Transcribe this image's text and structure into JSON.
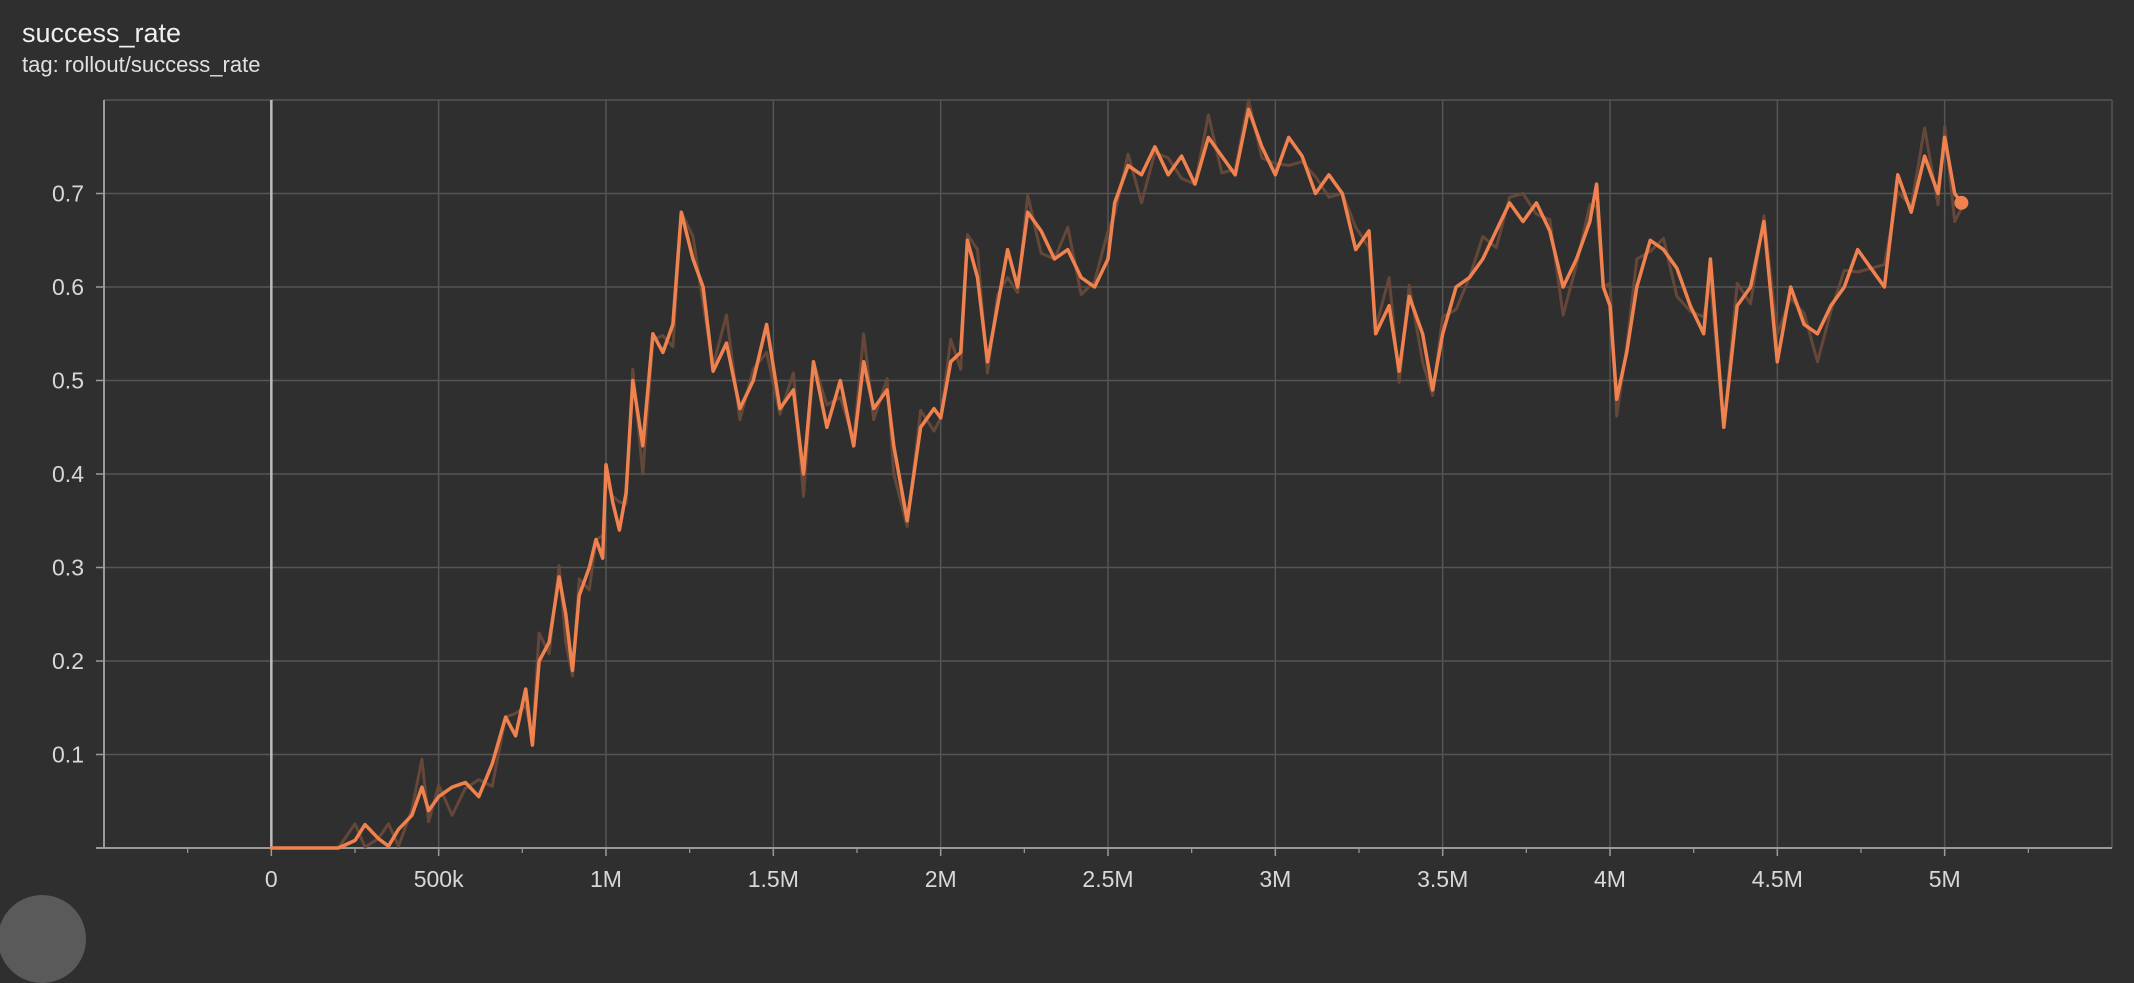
{
  "card": {
    "title": "success_rate",
    "subtitle": "tag: rollout/success_rate"
  },
  "colors": {
    "background": "#2f2f2f",
    "grid": "#555555",
    "axis": "#9a9a9a",
    "zero_line": "#bdbdbd",
    "smoothed": "#f0824f",
    "raw": "#6a4a3a"
  },
  "chart_data": {
    "type": "line",
    "title": "success_rate",
    "xlabel": "",
    "ylabel": "",
    "xlim": [
      -500000,
      5500000
    ],
    "ylim": [
      0,
      0.8
    ],
    "x_ticks": [
      0,
      500000,
      1000000,
      1500000,
      2000000,
      2500000,
      3000000,
      3500000,
      4000000,
      4500000,
      5000000
    ],
    "x_tick_labels": [
      "0",
      "500k",
      "1M",
      "1.5M",
      "2M",
      "2.5M",
      "3M",
      "3.5M",
      "4M",
      "4.5M",
      "5M"
    ],
    "y_ticks": [
      0.1,
      0.2,
      0.3,
      0.4,
      0.5,
      0.6,
      0.7
    ],
    "y_tick_labels": [
      "0.1",
      "0.2",
      "0.3",
      "0.4",
      "0.5",
      "0.6",
      "0.7"
    ],
    "grid": true,
    "series": [
      {
        "smoothing": "smoothed",
        "points": [
          [
            0,
            0
          ],
          [
            200000,
            0
          ],
          [
            250000,
            0.008
          ],
          [
            280000,
            0.025
          ],
          [
            320000,
            0.01
          ],
          [
            350000,
            0.002
          ],
          [
            380000,
            0.02
          ],
          [
            420000,
            0.035
          ],
          [
            450000,
            0.065
          ],
          [
            470000,
            0.04
          ],
          [
            500000,
            0.055
          ],
          [
            540000,
            0.065
          ],
          [
            580000,
            0.07
          ],
          [
            620000,
            0.055
          ],
          [
            660000,
            0.09
          ],
          [
            700000,
            0.14
          ],
          [
            730000,
            0.12
          ],
          [
            760000,
            0.17
          ],
          [
            780000,
            0.11
          ],
          [
            800000,
            0.2
          ],
          [
            830000,
            0.22
          ],
          [
            860000,
            0.29
          ],
          [
            880000,
            0.25
          ],
          [
            900000,
            0.19
          ],
          [
            920000,
            0.27
          ],
          [
            950000,
            0.3
          ],
          [
            970000,
            0.33
          ],
          [
            990000,
            0.31
          ],
          [
            1000000,
            0.41
          ],
          [
            1020000,
            0.37
          ],
          [
            1040000,
            0.34
          ],
          [
            1060000,
            0.38
          ],
          [
            1080000,
            0.5
          ],
          [
            1110000,
            0.43
          ],
          [
            1140000,
            0.55
          ],
          [
            1170000,
            0.53
          ],
          [
            1200000,
            0.56
          ],
          [
            1225000,
            0.68
          ],
          [
            1260000,
            0.63
          ],
          [
            1290000,
            0.6
          ],
          [
            1320000,
            0.51
          ],
          [
            1360000,
            0.54
          ],
          [
            1400000,
            0.47
          ],
          [
            1440000,
            0.5
          ],
          [
            1480000,
            0.56
          ],
          [
            1520000,
            0.47
          ],
          [
            1560000,
            0.49
          ],
          [
            1590000,
            0.4
          ],
          [
            1620000,
            0.52
          ],
          [
            1660000,
            0.45
          ],
          [
            1700000,
            0.5
          ],
          [
            1740000,
            0.43
          ],
          [
            1770000,
            0.52
          ],
          [
            1800000,
            0.47
          ],
          [
            1840000,
            0.49
          ],
          [
            1860000,
            0.43
          ],
          [
            1900000,
            0.35
          ],
          [
            1940000,
            0.45
          ],
          [
            1980000,
            0.47
          ],
          [
            2000000,
            0.46
          ],
          [
            2030000,
            0.52
          ],
          [
            2060000,
            0.53
          ],
          [
            2080000,
            0.65
          ],
          [
            2110000,
            0.61
          ],
          [
            2140000,
            0.52
          ],
          [
            2170000,
            0.58
          ],
          [
            2200000,
            0.64
          ],
          [
            2230000,
            0.6
          ],
          [
            2260000,
            0.68
          ],
          [
            2300000,
            0.66
          ],
          [
            2340000,
            0.63
          ],
          [
            2380000,
            0.64
          ],
          [
            2420000,
            0.61
          ],
          [
            2460000,
            0.6
          ],
          [
            2500000,
            0.63
          ],
          [
            2520000,
            0.69
          ],
          [
            2560000,
            0.73
          ],
          [
            2600000,
            0.72
          ],
          [
            2640000,
            0.75
          ],
          [
            2680000,
            0.72
          ],
          [
            2720000,
            0.74
          ],
          [
            2760000,
            0.71
          ],
          [
            2800000,
            0.76
          ],
          [
            2840000,
            0.74
          ],
          [
            2880000,
            0.72
          ],
          [
            2920000,
            0.79
          ],
          [
            2960000,
            0.75
          ],
          [
            3000000,
            0.72
          ],
          [
            3040000,
            0.76
          ],
          [
            3080000,
            0.74
          ],
          [
            3120000,
            0.7
          ],
          [
            3160000,
            0.72
          ],
          [
            3200000,
            0.7
          ],
          [
            3240000,
            0.64
          ],
          [
            3280000,
            0.66
          ],
          [
            3300000,
            0.55
          ],
          [
            3340000,
            0.58
          ],
          [
            3370000,
            0.51
          ],
          [
            3400000,
            0.59
          ],
          [
            3440000,
            0.55
          ],
          [
            3470000,
            0.49
          ],
          [
            3500000,
            0.55
          ],
          [
            3540000,
            0.6
          ],
          [
            3580000,
            0.61
          ],
          [
            3620000,
            0.63
          ],
          [
            3660000,
            0.66
          ],
          [
            3700000,
            0.69
          ],
          [
            3740000,
            0.67
          ],
          [
            3780000,
            0.69
          ],
          [
            3820000,
            0.66
          ],
          [
            3860000,
            0.6
          ],
          [
            3900000,
            0.63
          ],
          [
            3940000,
            0.67
          ],
          [
            3960000,
            0.71
          ],
          [
            3980000,
            0.6
          ],
          [
            4000000,
            0.58
          ],
          [
            4020000,
            0.48
          ],
          [
            4050000,
            0.53
          ],
          [
            4080000,
            0.6
          ],
          [
            4120000,
            0.65
          ],
          [
            4160000,
            0.64
          ],
          [
            4200000,
            0.62
          ],
          [
            4240000,
            0.58
          ],
          [
            4280000,
            0.55
          ],
          [
            4300000,
            0.63
          ],
          [
            4340000,
            0.45
          ],
          [
            4380000,
            0.58
          ],
          [
            4420000,
            0.6
          ],
          [
            4460000,
            0.67
          ],
          [
            4500000,
            0.52
          ],
          [
            4540000,
            0.6
          ],
          [
            4580000,
            0.56
          ],
          [
            4620000,
            0.55
          ],
          [
            4660000,
            0.58
          ],
          [
            4700000,
            0.6
          ],
          [
            4740000,
            0.64
          ],
          [
            4780000,
            0.62
          ],
          [
            4820000,
            0.6
          ],
          [
            4860000,
            0.72
          ],
          [
            4900000,
            0.68
          ],
          [
            4940000,
            0.74
          ],
          [
            4980000,
            0.7
          ],
          [
            5000000,
            0.76
          ],
          [
            5030000,
            0.7
          ],
          [
            5050000,
            0.69
          ]
        ]
      }
    ]
  }
}
